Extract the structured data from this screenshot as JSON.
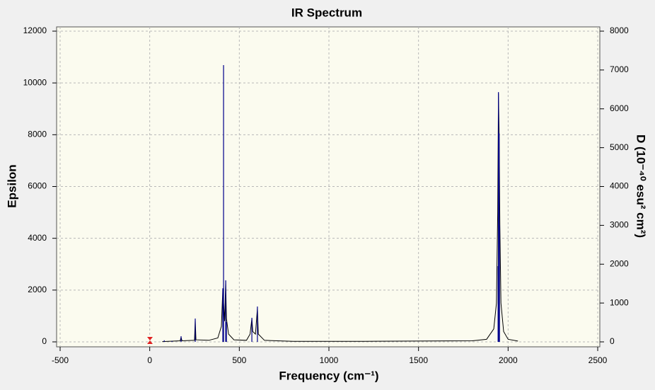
{
  "chart_data": {
    "type": "line",
    "title": "IR Spectrum",
    "x_label": "Frequency (cm⁻¹)",
    "y_label": "Epsilon",
    "y2_label": "D (10⁻⁴⁰ esu² cm²)",
    "xlim": [
      -500,
      2500
    ],
    "xticks": [
      -500,
      0,
      500,
      1000,
      1500,
      2000,
      2500
    ],
    "ylim": [
      0,
      12000
    ],
    "yticks": [
      0,
      2000,
      4000,
      6000,
      8000,
      10000,
      12000
    ],
    "y2lim": [
      0,
      8000
    ],
    "y2ticks": [
      0,
      1000,
      2000,
      3000,
      4000,
      5000,
      6000,
      7000,
      8000
    ],
    "grid": true,
    "series": [
      {
        "color": "#000000",
        "style": "curve",
        "x": [
          70,
          170,
          175,
          180,
          250,
          254,
          258,
          330,
          380,
          400,
          408,
          412,
          418,
          424,
          428,
          440,
          470,
          540,
          560,
          570,
          575,
          590,
          601,
          606,
          640,
          800,
          1200,
          1260,
          1800,
          1880,
          1920,
          1935,
          1942,
          1946,
          1950,
          1954,
          1960,
          1975,
          2000,
          2055
        ],
        "values": [
          10,
          40,
          180,
          40,
          60,
          850,
          80,
          60,
          150,
          600,
          2050,
          1500,
          800,
          2350,
          900,
          300,
          80,
          60,
          300,
          900,
          400,
          300,
          1300,
          300,
          60,
          20,
          20,
          25,
          40,
          100,
          500,
          1500,
          5000,
          9600,
          8000,
          4500,
          1500,
          400,
          100,
          30
        ]
      },
      {
        "color": "#00008b",
        "style": "stick",
        "axis": "y2",
        "x": [
          81,
          124,
          175,
          254,
          408,
          412,
          424,
          428,
          570,
          601,
          1944,
          1946,
          1950,
          1952
        ],
        "values": [
          40,
          20,
          146,
          600,
          1380,
          7125,
          1585,
          510,
          620,
          910,
          1950,
          6430,
          5370,
          3010
        ]
      }
    ]
  }
}
